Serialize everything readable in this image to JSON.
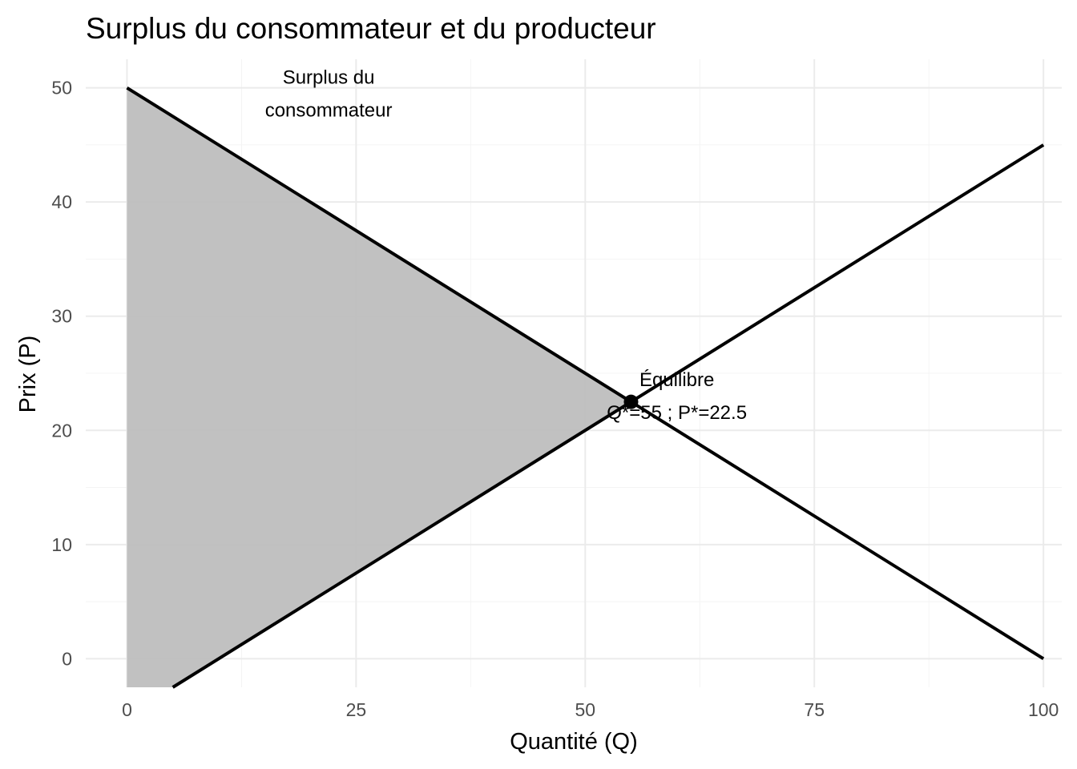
{
  "chart_data": {
    "type": "line",
    "title": "Surplus du consommateur et du producteur",
    "xlabel": "Quantité (Q)",
    "ylabel": "Prix (P)",
    "xlim": [
      -4.5,
      102
    ],
    "ylim": [
      -2.5,
      52.5
    ],
    "x_ticks": [
      0,
      25,
      50,
      75,
      100
    ],
    "x_tick_labels": [
      "0",
      "25",
      "50",
      "75",
      "100"
    ],
    "y_ticks": [
      0,
      10,
      20,
      30,
      40,
      50
    ],
    "y_tick_labels": [
      "0",
      "10",
      "20",
      "30",
      "40",
      "50"
    ],
    "grid": true,
    "series": [
      {
        "x": [
          0,
          100
        ],
        "y": [
          50,
          0
        ]
      },
      {
        "x": [
          5,
          100
        ],
        "y": [
          -2.5,
          45
        ]
      }
    ],
    "shaded_area": {
      "x": [
        0,
        0,
        55,
        5
      ],
      "y": [
        -2.5,
        50,
        22.5,
        -2.5
      ],
      "color": "#bebebe"
    },
    "equilibrium": {
      "x": 55,
      "y": 22.5
    },
    "annotations": [
      {
        "lines": [
          "Surplus du",
          "consommateur"
        ],
        "x": 22,
        "y": 49.5
      },
      {
        "lines": [
          "Équilibre",
          "Q*=55 ; P*=22.5"
        ],
        "x": 60,
        "y": 23
      }
    ]
  }
}
